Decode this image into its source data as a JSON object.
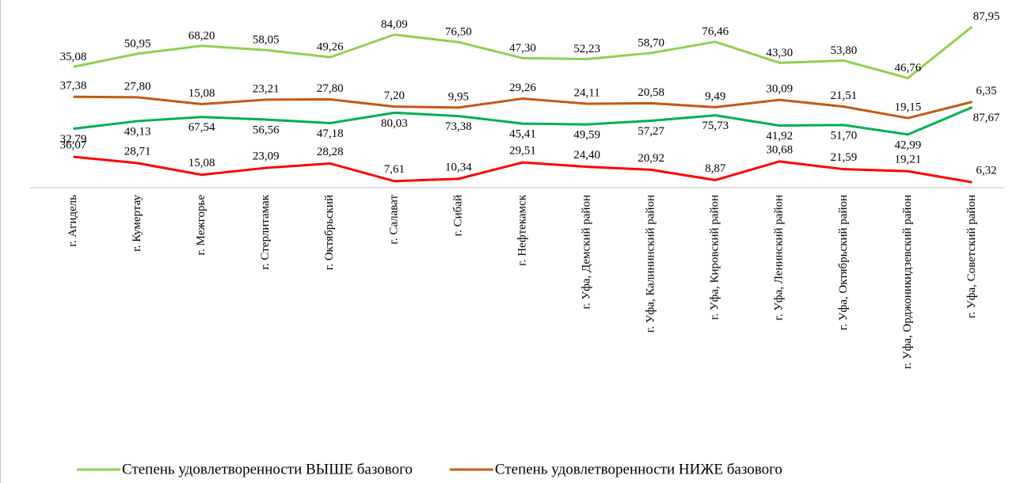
{
  "chart_data": {
    "type": "line",
    "stacked": true,
    "categories": [
      "г. Агидель",
      "г. Кумертау",
      "г. Межгорье",
      "г. Стерлитамак",
      "г. Октябрьский",
      "г. Салават",
      "г. Сибай",
      "г. Нефтекамск",
      "г. Уфа, Демский район",
      "г. Уфа, Калининский район",
      "г. Уфа, Кировский район",
      "г. Уфа, Ленинский район",
      "г. Уфа, Октябрьский район",
      "г. Уфа, Орджоникидзевский район",
      "г. Уфа, Советский район"
    ],
    "ylim": [
      0,
      200
    ],
    "series": [
      {
        "color": "#ff0000",
        "values": [
          36.07,
          28.71,
          15.08,
          23.09,
          28.28,
          7.61,
          10.34,
          29.51,
          24.4,
          20.92,
          8.87,
          30.68,
          21.59,
          19.21,
          6.32
        ],
        "value_labels": [
          "36,07",
          "28,71",
          "15,08",
          "23,09",
          "28,28",
          "7,61",
          "10,34",
          "29,51",
          "24,40",
          "20,92",
          "8,87",
          "30,68",
          "21,59",
          "19,21",
          "6,32"
        ]
      },
      {
        "color": "#00b050",
        "values": [
          32.79,
          49.13,
          67.54,
          56.56,
          47.18,
          80.03,
          73.38,
          45.41,
          49.59,
          57.27,
          75.73,
          41.92,
          51.7,
          42.99,
          87.67
        ],
        "value_labels": [
          "32,79",
          "49,13",
          "67,54",
          "56,56",
          "47,18",
          "80,03",
          "73,38",
          "45,41",
          "49,59",
          "57,27",
          "75,73",
          "41,92",
          "51,70",
          "42,99",
          "87,67"
        ]
      },
      {
        "name": "Степень удовлетворенности НИЖЕ базового",
        "color": "#c55a11",
        "values": [
          37.38,
          27.8,
          15.08,
          23.21,
          27.8,
          7.2,
          9.95,
          29.26,
          24.11,
          20.58,
          9.49,
          30.09,
          21.51,
          19.15,
          6.35
        ],
        "value_labels": [
          "37,38",
          "27,80",
          "15,08",
          "23,21",
          "27,80",
          "7,20",
          "9,95",
          "29,26",
          "24,11",
          "20,58",
          "9,49",
          "30,09",
          "21,51",
          "19,15",
          "6,35"
        ]
      },
      {
        "name": "Степень удовлетворенности ВЫШЕ базового",
        "color": "#92d050",
        "values": [
          35.08,
          50.95,
          68.2,
          58.05,
          49.26,
          84.09,
          76.5,
          47.3,
          52.23,
          58.7,
          76.46,
          43.3,
          53.8,
          46.76,
          87.95
        ],
        "value_labels": [
          "35,08",
          "50,95",
          "68,20",
          "58,05",
          "49,26",
          "84,09",
          "76,50",
          "47,30",
          "52,23",
          "58,70",
          "76,46",
          "43,30",
          "53,80",
          "46,76",
          "87,95"
        ]
      }
    ]
  }
}
